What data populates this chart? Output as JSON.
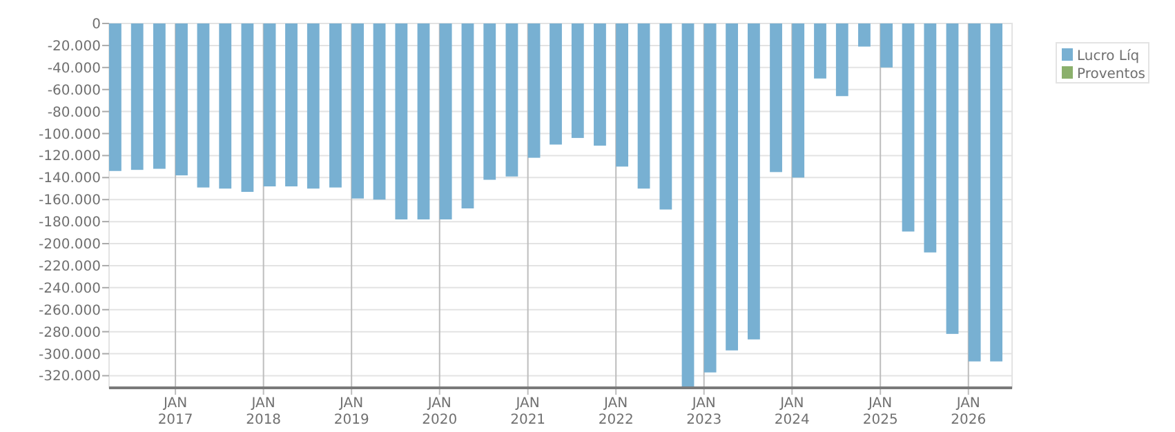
{
  "chart_data": {
    "type": "bar",
    "x": [
      "2016-04",
      "2016-07",
      "2016-10",
      "2017-01",
      "2017-04",
      "2017-07",
      "2017-10",
      "2018-01",
      "2018-04",
      "2018-07",
      "2018-10",
      "2019-01",
      "2019-04",
      "2019-07",
      "2019-10",
      "2020-01",
      "2020-04",
      "2020-07",
      "2020-10",
      "2021-01",
      "2021-04",
      "2021-07",
      "2021-10",
      "2022-01",
      "2022-04",
      "2022-07",
      "2022-10",
      "2023-01",
      "2023-04",
      "2023-07",
      "2023-10",
      "2024-01",
      "2024-04",
      "2024-07",
      "2024-10",
      "2025-01",
      "2025-04",
      "2025-07",
      "2025-10",
      "2026-01",
      "2026-04"
    ],
    "series": [
      {
        "name": "Lucro Líq",
        "color": "#78b0d2",
        "values": [
          -134000,
          -133000,
          -132000,
          -138000,
          -149000,
          -150000,
          -153000,
          -148000,
          -148000,
          -150000,
          -149000,
          -159000,
          -160000,
          -178000,
          -178000,
          -178000,
          -168000,
          -142000,
          -139000,
          -122000,
          -110000,
          -104000,
          -111000,
          -130000,
          -150000,
          -169000,
          -331000,
          -317000,
          -297000,
          -287000,
          -135000,
          -140000,
          -50000,
          -66000,
          -21000,
          -40000,
          -189000,
          -208000,
          -282000,
          -307000,
          -307000
        ]
      },
      {
        "name": "Proventos",
        "color": "#8bb06c",
        "values": [
          null,
          null,
          null,
          null,
          null,
          null,
          null,
          null,
          null,
          null,
          null,
          null,
          null,
          null,
          null,
          null,
          null,
          null,
          null,
          null,
          null,
          null,
          null,
          null,
          null,
          null,
          null,
          null,
          null,
          null,
          null,
          null,
          null,
          null,
          null,
          null,
          null,
          null,
          null,
          null,
          null
        ]
      }
    ],
    "xlim": [
      "2016-04",
      "2026-07"
    ],
    "xticks": [
      {
        "value": "2017-01",
        "label": "JAN 2017"
      },
      {
        "value": "2018-01",
        "label": "JAN 2018"
      },
      {
        "value": "2019-01",
        "label": "JAN 2019"
      },
      {
        "value": "2020-01",
        "label": "JAN 2020"
      },
      {
        "value": "2021-01",
        "label": "JAN 2021"
      },
      {
        "value": "2022-01",
        "label": "JAN 2022"
      },
      {
        "value": "2023-01",
        "label": "JAN 2023"
      },
      {
        "value": "2024-01",
        "label": "JAN 2024"
      },
      {
        "value": "2025-01",
        "label": "JAN 2025"
      },
      {
        "value": "2026-01",
        "label": "JAN 2026"
      }
    ],
    "ylim": [
      -331000,
      0
    ],
    "yticks": [
      0,
      {
        "value": -20000,
        "label": "-20.000"
      },
      {
        "value": -40000,
        "label": "-40.000"
      },
      {
        "value": -60000,
        "label": "-60.000"
      },
      {
        "value": -80000,
        "label": "-80.000"
      },
      {
        "value": -100000,
        "label": "-100.000"
      },
      {
        "value": -120000,
        "label": "-120.000"
      },
      {
        "value": -140000,
        "label": "-140.000"
      },
      {
        "value": -160000,
        "label": "-160.000"
      },
      {
        "value": -180000,
        "label": "-180.000"
      },
      {
        "value": -200000,
        "label": "-200.000"
      },
      {
        "value": -220000,
        "label": "-220.000"
      },
      {
        "value": -240000,
        "label": "-240.000"
      },
      {
        "value": -260000,
        "label": "-260.000"
      },
      {
        "value": -280000,
        "label": "-280.000"
      },
      {
        "value": -300000,
        "label": "-300.000"
      },
      {
        "value": -320000,
        "label": "-320.000"
      }
    ],
    "grid": true,
    "legend": "top right"
  }
}
